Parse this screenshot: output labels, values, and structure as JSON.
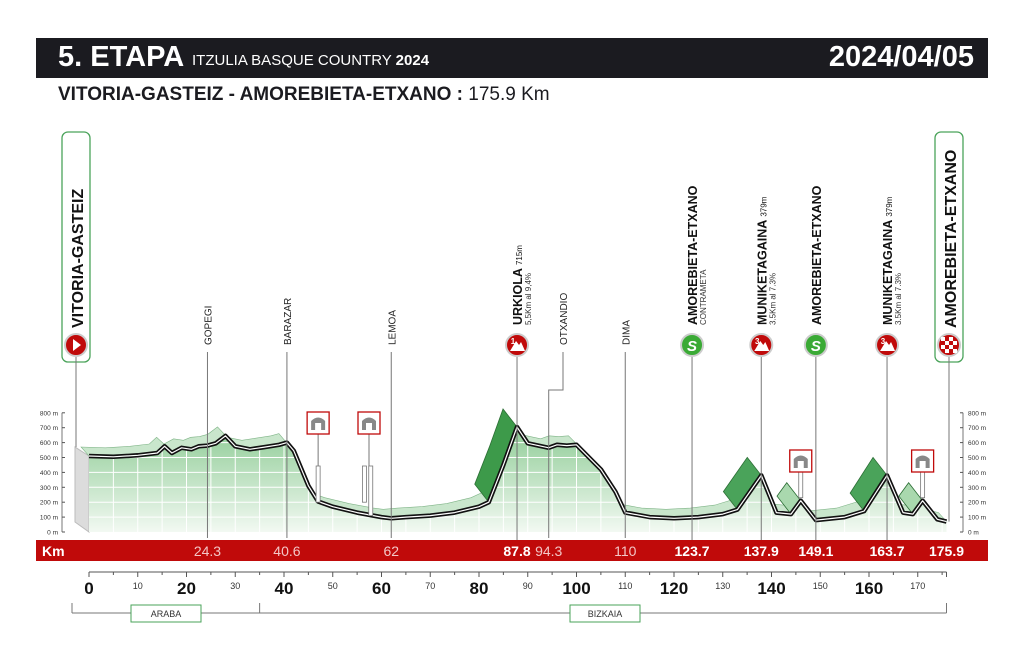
{
  "header": {
    "stage": "5. ETAPA",
    "race_name": "ITZULIA BASQUE COUNTRY",
    "race_year": "2024",
    "date": "2024/04/05"
  },
  "route": {
    "start": "VITORIA-GASTEIZ",
    "separator": " - ",
    "finish": "AMOREBIETA-ETXANO",
    "colon": " : ",
    "distance": "175.9 Km"
  },
  "colors": {
    "header_bg": "#1b1b20",
    "km_band": "#c00a0a",
    "profile_green": "#4aa35a",
    "climb_marker": "#c00a0a",
    "sprint_marker": "#3aaa35"
  },
  "chart_data": {
    "type": "area",
    "title": "",
    "xlabel": "Km",
    "ylabel": "",
    "xlim": [
      0,
      175.9
    ],
    "ylim": [
      0,
      800
    ],
    "x_ticks_major": [
      0,
      20,
      40,
      60,
      80,
      100,
      120,
      140,
      160
    ],
    "x_ticks_minor": [
      10,
      30,
      50,
      70,
      90,
      110,
      130,
      150,
      170
    ],
    "y_ticks": [
      "0 m",
      "100 m",
      "200 m",
      "300 m",
      "400 m",
      "500 m",
      "600 m",
      "700 m",
      "800 m"
    ],
    "elevation": [
      [
        0,
        510
      ],
      [
        5,
        505
      ],
      [
        10,
        515
      ],
      [
        14,
        530
      ],
      [
        15.5,
        575
      ],
      [
        17,
        530
      ],
      [
        19,
        565
      ],
      [
        21,
        555
      ],
      [
        22.5,
        575
      ],
      [
        24.3,
        580
      ],
      [
        26,
        595
      ],
      [
        28,
        645
      ],
      [
        30,
        575
      ],
      [
        33,
        555
      ],
      [
        36,
        570
      ],
      [
        39,
        585
      ],
      [
        40.6,
        600
      ],
      [
        42,
        545
      ],
      [
        45,
        310
      ],
      [
        47,
        205
      ],
      [
        50,
        170
      ],
      [
        55,
        130
      ],
      [
        60,
        100
      ],
      [
        62,
        92
      ],
      [
        65,
        100
      ],
      [
        70,
        110
      ],
      [
        75,
        130
      ],
      [
        80,
        170
      ],
      [
        82,
        200
      ],
      [
        85,
        450
      ],
      [
        87.8,
        705
      ],
      [
        90,
        595
      ],
      [
        94.3,
        565
      ],
      [
        96,
        585
      ],
      [
        98,
        580
      ],
      [
        100,
        585
      ],
      [
        105,
        420
      ],
      [
        108,
        270
      ],
      [
        110,
        130
      ],
      [
        115,
        100
      ],
      [
        120,
        92
      ],
      [
        125,
        100
      ],
      [
        130,
        120
      ],
      [
        133,
        150
      ],
      [
        137.9,
        380
      ],
      [
        141,
        130
      ],
      [
        144,
        120
      ],
      [
        146,
        210
      ],
      [
        149.1,
        80
      ],
      [
        155,
        100
      ],
      [
        159,
        140
      ],
      [
        163.7,
        380
      ],
      [
        167,
        130
      ],
      [
        169,
        120
      ],
      [
        171,
        210
      ],
      [
        174,
        85
      ],
      [
        175.9,
        70
      ]
    ],
    "km_band_labels": [
      {
        "km": 24.3,
        "label": "24.3",
        "bold": false
      },
      {
        "km": 40.6,
        "label": "40.6",
        "bold": false
      },
      {
        "km": 62,
        "label": "62",
        "bold": false
      },
      {
        "km": 87.8,
        "label": "87.8",
        "bold": true
      },
      {
        "km": 94.3,
        "label": "94.3",
        "bold": false
      },
      {
        "km": 110,
        "label": "110",
        "bold": false
      },
      {
        "km": 123.7,
        "label": "123.7",
        "bold": true
      },
      {
        "km": 137.9,
        "label": "137.9",
        "bold": true
      },
      {
        "km": 149.1,
        "label": "149.1",
        "bold": true
      },
      {
        "km": 163.7,
        "label": "163.7",
        "bold": true
      },
      {
        "km": 175.9,
        "label": "175.9",
        "bold": true
      }
    ],
    "waypoints": [
      {
        "km": 0,
        "name": "VITORIA-GASTEIZ",
        "type": "start"
      },
      {
        "km": 24.3,
        "name": "GOPEGI",
        "type": "place"
      },
      {
        "km": 40.6,
        "name": "BARAZAR",
        "type": "place"
      },
      {
        "km": 62,
        "name": "LEMOA",
        "type": "place"
      },
      {
        "km": 87.8,
        "name": "URKIOLA",
        "alt": "715m",
        "detail": "5,5Km al 9,4%",
        "type": "climb",
        "category": "1"
      },
      {
        "km": 94.3,
        "name": "OTXANDIO",
        "type": "place"
      },
      {
        "km": 110,
        "name": "DIMA",
        "type": "place"
      },
      {
        "km": 123.7,
        "name": "AMOREBIETA-ETXANO",
        "detail": "CONTRAMETA",
        "type": "sprint"
      },
      {
        "km": 137.9,
        "name": "MUNIKETAGAINA",
        "alt": "379m",
        "detail": "3.5Km al 7.3%",
        "type": "climb",
        "category": "3"
      },
      {
        "km": 149.1,
        "name": "AMOREBIETA-ETXANO",
        "type": "sprint"
      },
      {
        "km": 163.7,
        "name": "MUNIKETAGAINA",
        "alt": "379m",
        "detail": "3.5Km al 7.3%",
        "type": "climb",
        "category": "3"
      },
      {
        "km": 175.9,
        "name": "AMOREBIETA-ETXANO",
        "type": "finish"
      }
    ],
    "tunnels_km": [
      47,
      56.5,
      58,
      146,
      171
    ],
    "regions": [
      {
        "name": "ARABA",
        "from": 0,
        "to": 35
      },
      {
        "name": "BIZKAIA",
        "from": 35,
        "to": 175.9
      }
    ],
    "sprint_symbol": "S"
  }
}
